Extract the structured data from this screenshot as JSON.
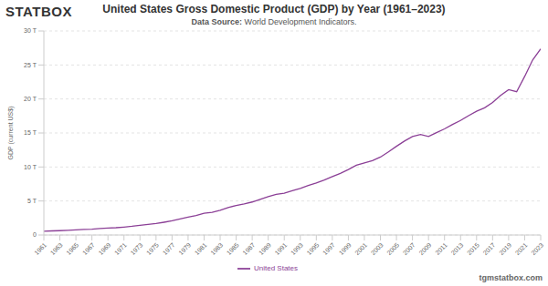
{
  "chart_data": {
    "type": "line",
    "title": "United States Gross Domestic Product (GDP) by Year (1961–2023)",
    "subtitle": "Data Source: World Development Indicators.",
    "annotations": [
      "STATBOX",
      "tgmstatbox.com"
    ],
    "y_label": "GDP (current US$)",
    "x": [
      1961,
      1962,
      1963,
      1964,
      1965,
      1966,
      1967,
      1968,
      1969,
      1970,
      1971,
      1972,
      1973,
      1974,
      1975,
      1976,
      1977,
      1978,
      1979,
      1980,
      1981,
      1982,
      1983,
      1984,
      1985,
      1986,
      1987,
      1988,
      1989,
      1990,
      1991,
      1992,
      1993,
      1994,
      1995,
      1996,
      1997,
      1998,
      1999,
      2000,
      2001,
      2002,
      2003,
      2004,
      2005,
      2006,
      2007,
      2008,
      2009,
      2010,
      2011,
      2012,
      2013,
      2014,
      2015,
      2016,
      2017,
      2018,
      2019,
      2020,
      2021,
      2022,
      2023
    ],
    "series": [
      {
        "name": "United States",
        "color": "#8b3f96",
        "values": [
          0.563,
          0.605,
          0.639,
          0.686,
          0.744,
          0.815,
          0.862,
          0.943,
          1.02,
          1.073,
          1.165,
          1.28,
          1.425,
          1.545,
          1.684,
          1.873,
          2.082,
          2.352,
          2.627,
          2.857,
          3.207,
          3.344,
          3.634,
          4.037,
          4.339,
          4.58,
          4.855,
          5.236,
          5.642,
          5.963,
          6.158,
          6.52,
          6.859,
          7.287,
          7.64,
          8.073,
          8.578,
          9.063,
          9.631,
          10.251,
          10.582,
          10.929,
          11.457,
          12.217,
          13.039,
          13.816,
          14.474,
          14.77,
          14.478,
          15.049,
          15.6,
          16.254,
          16.843,
          17.551,
          18.206,
          18.695,
          19.477,
          20.533,
          21.381,
          21.06,
          23.315,
          25.744,
          27.361
        ]
      }
    ],
    "xlim": [
      1961,
      2023
    ],
    "xticks": [
      1961,
      1963,
      1965,
      1967,
      1969,
      1971,
      1973,
      1975,
      1977,
      1979,
      1981,
      1983,
      1985,
      1987,
      1989,
      1991,
      1993,
      1995,
      1997,
      1999,
      2001,
      2003,
      2005,
      2007,
      2009,
      2011,
      2013,
      2015,
      2017,
      2019,
      2021,
      2023
    ],
    "ylim": [
      0,
      30
    ],
    "yticks": [
      0,
      {
        "value": 5,
        "label": "5 T"
      },
      {
        "value": 10,
        "label": "10 T"
      },
      {
        "value": 15,
        "label": "15 T"
      },
      {
        "value": 20,
        "label": "20 T"
      },
      {
        "value": 25,
        "label": "25 T"
      },
      {
        "value": 30,
        "label": "30 T"
      }
    ],
    "grid": true,
    "legend": "bottom"
  }
}
